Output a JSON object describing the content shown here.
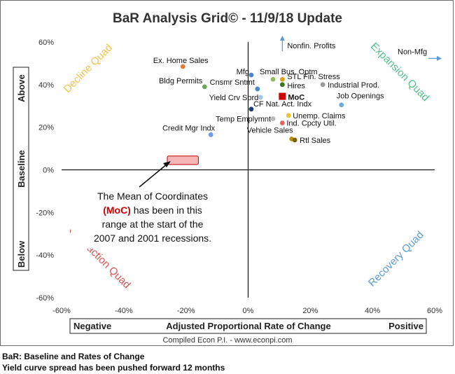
{
  "footer": {
    "line1": "BaR: Baseline and Rates of Change",
    "line2": "Yield curve spread has been pushed forward 12 months"
  },
  "chart_data": {
    "type": "scatter",
    "title": "BaR Analysis Grid© - 11/9/18 Update",
    "subtitle": "Compiled Econ P.I. - www.econpi.com",
    "xlim": [
      -60,
      60
    ],
    "ylim": [
      -60,
      60
    ],
    "x_ticks": [
      "-60%",
      "-40%",
      "-20%",
      "0%",
      "20%",
      "40%",
      "60%"
    ],
    "y_ticks": [
      "60%",
      "40%",
      "20%",
      "0%",
      "-20%",
      "-40%",
      "-60%"
    ],
    "x_axis_box": {
      "left": "Negative",
      "center": "Adjusted Proportional Rate of Change",
      "right": "Positive"
    },
    "y_axis_box": {
      "top": "Above",
      "center": "Baseline",
      "bottom": "Below"
    },
    "quadrants": [
      {
        "name": "Decline Quad",
        "color": "#f2c14e",
        "position": "top-left"
      },
      {
        "name": "Expansion Quad",
        "color": "#4fc189",
        "position": "top-right"
      },
      {
        "name": "Contraction Quad",
        "color": "#d9534f",
        "position": "bottom-left"
      },
      {
        "name": "Recovery Quad",
        "color": "#5b9bd5",
        "position": "bottom-right"
      }
    ],
    "points": [
      {
        "label": "Ex. Home Sales",
        "x": -21,
        "y": 48.5,
        "color": "#e07b39"
      },
      {
        "label": "Bldg Permits",
        "x": -14,
        "y": 39,
        "color": "#6aa84f"
      },
      {
        "label": "Mfg",
        "x": 1,
        "y": 44.5,
        "color": "#4a86c8"
      },
      {
        "label": "Small Bus. Optm",
        "x": 8,
        "y": 42.5,
        "color": "#8fbc5a"
      },
      {
        "label": "STL Fin. Stress",
        "x": 11,
        "y": 42.5,
        "color": "#d9a21b"
      },
      {
        "label": "Hires",
        "x": 11,
        "y": 40,
        "color": "#38761d"
      },
      {
        "label": "Industrial Prod.",
        "x": 24,
        "y": 40,
        "color": "#999999"
      },
      {
        "label": "Cnsmr Sntmt",
        "x": 3,
        "y": 38,
        "color": "#4a86c8"
      },
      {
        "label": "Yield Crv Sprd",
        "x": 4,
        "y": 34,
        "color": "#9fc5e8"
      },
      {
        "label": "Job Openings",
        "x": 30,
        "y": 30.5,
        "color": "#6fa8dc"
      },
      {
        "label": "CF Nat. Act. Indx",
        "x": 1,
        "y": 28.5,
        "color": "#1f3b73"
      },
      {
        "label": "Unemp. Claims",
        "x": 13,
        "y": 25.5,
        "color": "#f1c232"
      },
      {
        "label": "Temp Emplymnt",
        "x": 8,
        "y": 24,
        "color": "#b7b7b7"
      },
      {
        "label": "Ind. Cpcty Util.",
        "x": 11,
        "y": 22,
        "color": "#e06666"
      },
      {
        "label": "Credit Mgr Indx",
        "x": -12,
        "y": 16.5,
        "color": "#6d9eeb"
      },
      {
        "label": "Vehicle Sales",
        "x": 14,
        "y": 14.5,
        "color": "#bf9000"
      },
      {
        "label": "Rtl Sales",
        "x": 15,
        "y": 14,
        "color": "#7f6000"
      }
    ],
    "offscale": [
      {
        "label": "Nonfin. Profits",
        "direction": "up",
        "x": 11,
        "y": 60
      },
      {
        "label": "Non-Mfg",
        "direction": "right",
        "x": 60,
        "y": 50
      }
    ],
    "moc": {
      "label": "MoC",
      "x": 11,
      "y": 34.5,
      "color": "#cc0000"
    },
    "recession_range": {
      "x": [
        -26,
        -16
      ],
      "y": [
        2.5,
        6.5
      ],
      "fill": "#f4b6b6",
      "stroke": "#c00000"
    },
    "callout": {
      "lines": [
        "The Mean of Coordinates",
        "(MoC) has been in this",
        "range at the start of the",
        "2007 and 2001 recessions."
      ],
      "highlight": "(MoC)",
      "highlight_color": "#cc0000"
    }
  }
}
